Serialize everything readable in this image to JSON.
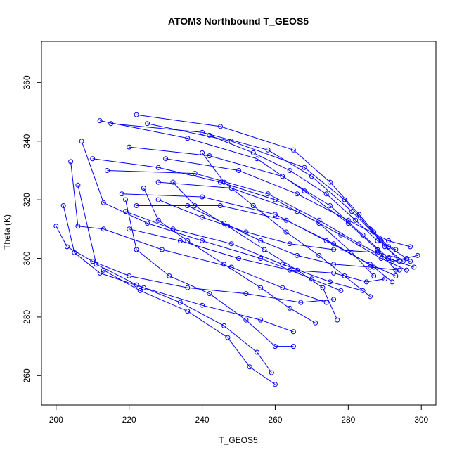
{
  "chart_data": {
    "type": "line",
    "title": "ATOM3 Northbound T_GEOS5",
    "xlabel": "T_GEOS5",
    "ylabel": "Theta (K)",
    "xlim": [
      196,
      304
    ],
    "ylim": [
      250,
      374
    ],
    "xticks": [
      200,
      220,
      240,
      260,
      280,
      300
    ],
    "yticks": [
      260,
      280,
      300,
      320,
      340,
      360
    ],
    "colors": {
      "series": "#0000ff",
      "axes": "#000000",
      "background": "#ffffff"
    },
    "point_marker": "open-circle",
    "series": [
      {
        "values": [
          [
            222,
            349
          ],
          [
            245,
            345
          ],
          [
            265,
            337
          ],
          [
            275,
            326
          ],
          [
            283,
            315
          ],
          [
            287,
            309
          ],
          [
            291,
            304
          ],
          [
            296,
            300
          ]
        ]
      },
      {
        "values": [
          [
            225,
            346
          ],
          [
            248,
            340
          ],
          [
            268,
            331
          ],
          [
            279,
            320
          ],
          [
            286,
            310
          ],
          [
            290,
            304
          ],
          [
            295,
            299
          ]
        ]
      },
      {
        "values": [
          [
            215,
            346
          ],
          [
            240,
            343
          ],
          [
            258,
            337
          ],
          [
            270,
            328
          ],
          [
            281,
            316
          ],
          [
            289,
            306
          ],
          [
            294,
            299
          ]
        ]
      },
      {
        "values": [
          [
            212,
            347
          ],
          [
            236,
            341
          ],
          [
            255,
            334
          ],
          [
            268,
            323
          ],
          [
            280,
            312
          ],
          [
            288,
            303
          ],
          [
            293,
            296
          ]
        ]
      },
      {
        "values": [
          [
            220,
            338
          ],
          [
            242,
            335
          ],
          [
            262,
            328
          ],
          [
            275,
            318
          ],
          [
            284,
            308
          ],
          [
            291,
            300
          ],
          [
            298,
            297
          ]
        ]
      },
      {
        "values": [
          [
            214,
            330
          ],
          [
            238,
            329
          ],
          [
            258,
            322
          ],
          [
            272,
            313
          ],
          [
            283,
            305
          ],
          [
            292,
            299
          ],
          [
            299,
            301
          ]
        ]
      },
      {
        "values": [
          [
            218,
            322
          ],
          [
            240,
            321
          ],
          [
            260,
            315
          ],
          [
            274,
            306
          ],
          [
            286,
            298
          ],
          [
            293,
            294
          ]
        ]
      },
      {
        "values": [
          [
            222,
            318
          ],
          [
            245,
            318
          ],
          [
            263,
            313
          ],
          [
            276,
            305
          ],
          [
            287,
            297
          ],
          [
            292,
            292
          ]
        ]
      },
      {
        "values": [
          [
            228,
            326
          ],
          [
            248,
            324
          ],
          [
            266,
            316
          ],
          [
            278,
            308
          ],
          [
            289,
            300
          ],
          [
            296,
            296
          ]
        ]
      },
      {
        "values": [
          [
            230,
            334
          ],
          [
            250,
            330
          ],
          [
            266,
            322
          ],
          [
            280,
            313
          ],
          [
            291,
            306
          ],
          [
            297,
            304
          ]
        ]
      },
      {
        "values": [
          [
            219,
            316
          ],
          [
            232,
            310
          ],
          [
            248,
            305
          ],
          [
            262,
            298
          ],
          [
            275,
            292
          ],
          [
            284,
            289
          ]
        ]
      },
      {
        "values": [
          [
            210,
            334
          ],
          [
            228,
            331
          ],
          [
            245,
            326
          ],
          [
            260,
            320
          ],
          [
            272,
            312
          ],
          [
            281,
            302
          ],
          [
            287,
            294
          ]
        ]
      },
      {
        "values": [
          [
            207,
            340
          ],
          [
            213,
            319
          ],
          [
            225,
            312
          ],
          [
            240,
            306
          ],
          [
            256,
            300
          ],
          [
            270,
            293
          ],
          [
            278,
            289
          ]
        ]
      },
      {
        "values": [
          [
            204,
            333
          ],
          [
            206,
            311
          ],
          [
            213,
            310
          ],
          [
            229,
            303
          ],
          [
            248,
            297
          ],
          [
            262,
            290
          ],
          [
            274,
            285
          ]
        ]
      },
      {
        "values": [
          [
            200,
            311
          ],
          [
            203,
            304
          ],
          [
            210,
            299
          ],
          [
            220,
            294
          ],
          [
            236,
            290
          ],
          [
            252,
            288
          ],
          [
            267,
            285
          ],
          [
            276,
            286
          ]
        ]
      },
      {
        "values": [
          [
            202,
            318
          ],
          [
            205,
            302
          ],
          [
            212,
            295
          ],
          [
            224,
            290
          ],
          [
            240,
            284
          ],
          [
            256,
            279
          ],
          [
            265,
            275
          ]
        ]
      },
      {
        "values": [
          [
            206,
            325
          ],
          [
            211,
            298
          ],
          [
            222,
            291
          ],
          [
            234,
            285
          ],
          [
            246,
            277
          ],
          [
            255,
            268
          ],
          [
            259,
            261
          ]
        ]
      },
      {
        "values": [
          [
            213,
            296
          ],
          [
            223,
            289
          ],
          [
            236,
            282
          ],
          [
            247,
            273
          ],
          [
            253,
            263
          ],
          [
            260,
            257
          ]
        ]
      },
      {
        "values": [
          [
            219,
            320
          ],
          [
            222,
            303
          ],
          [
            231,
            294
          ],
          [
            242,
            288
          ],
          [
            252,
            279
          ],
          [
            260,
            270
          ],
          [
            265,
            270
          ]
        ]
      },
      {
        "values": [
          [
            224,
            324
          ],
          [
            228,
            313
          ],
          [
            236,
            306
          ],
          [
            246,
            298
          ],
          [
            256,
            290
          ],
          [
            264,
            283
          ],
          [
            271,
            278
          ]
        ]
      },
      {
        "values": [
          [
            232,
            326
          ],
          [
            238,
            318
          ],
          [
            247,
            311
          ],
          [
            257,
            303
          ],
          [
            266,
            296
          ],
          [
            273,
            290
          ],
          [
            277,
            279
          ]
        ]
      },
      {
        "values": [
          [
            240,
            336
          ],
          [
            246,
            326
          ],
          [
            254,
            318
          ],
          [
            263,
            309
          ],
          [
            272,
            301
          ],
          [
            279,
            294
          ],
          [
            286,
            287
          ]
        ]
      },
      {
        "values": [
          [
            236,
            318
          ],
          [
            246,
            312
          ],
          [
            256,
            306
          ],
          [
            266,
            301
          ],
          [
            276,
            298
          ],
          [
            286,
            297
          ],
          [
            294,
            296
          ]
        ]
      },
      {
        "values": [
          [
            228,
            320
          ],
          [
            240,
            314
          ],
          [
            252,
            309
          ],
          [
            264,
            305
          ],
          [
            276,
            303
          ],
          [
            288,
            302
          ],
          [
            297,
            299
          ]
        ]
      },
      {
        "values": [
          [
            220,
            310
          ],
          [
            234,
            306
          ],
          [
            250,
            300
          ],
          [
            264,
            296
          ],
          [
            276,
            295
          ],
          [
            285,
            292
          ],
          [
            290,
            293
          ]
        ]
      },
      {
        "values": [
          [
            242,
            342
          ],
          [
            254,
            336
          ],
          [
            264,
            330
          ],
          [
            274,
            322
          ],
          [
            282,
            313
          ],
          [
            288,
            306
          ],
          [
            293,
            303
          ]
        ]
      }
    ]
  }
}
